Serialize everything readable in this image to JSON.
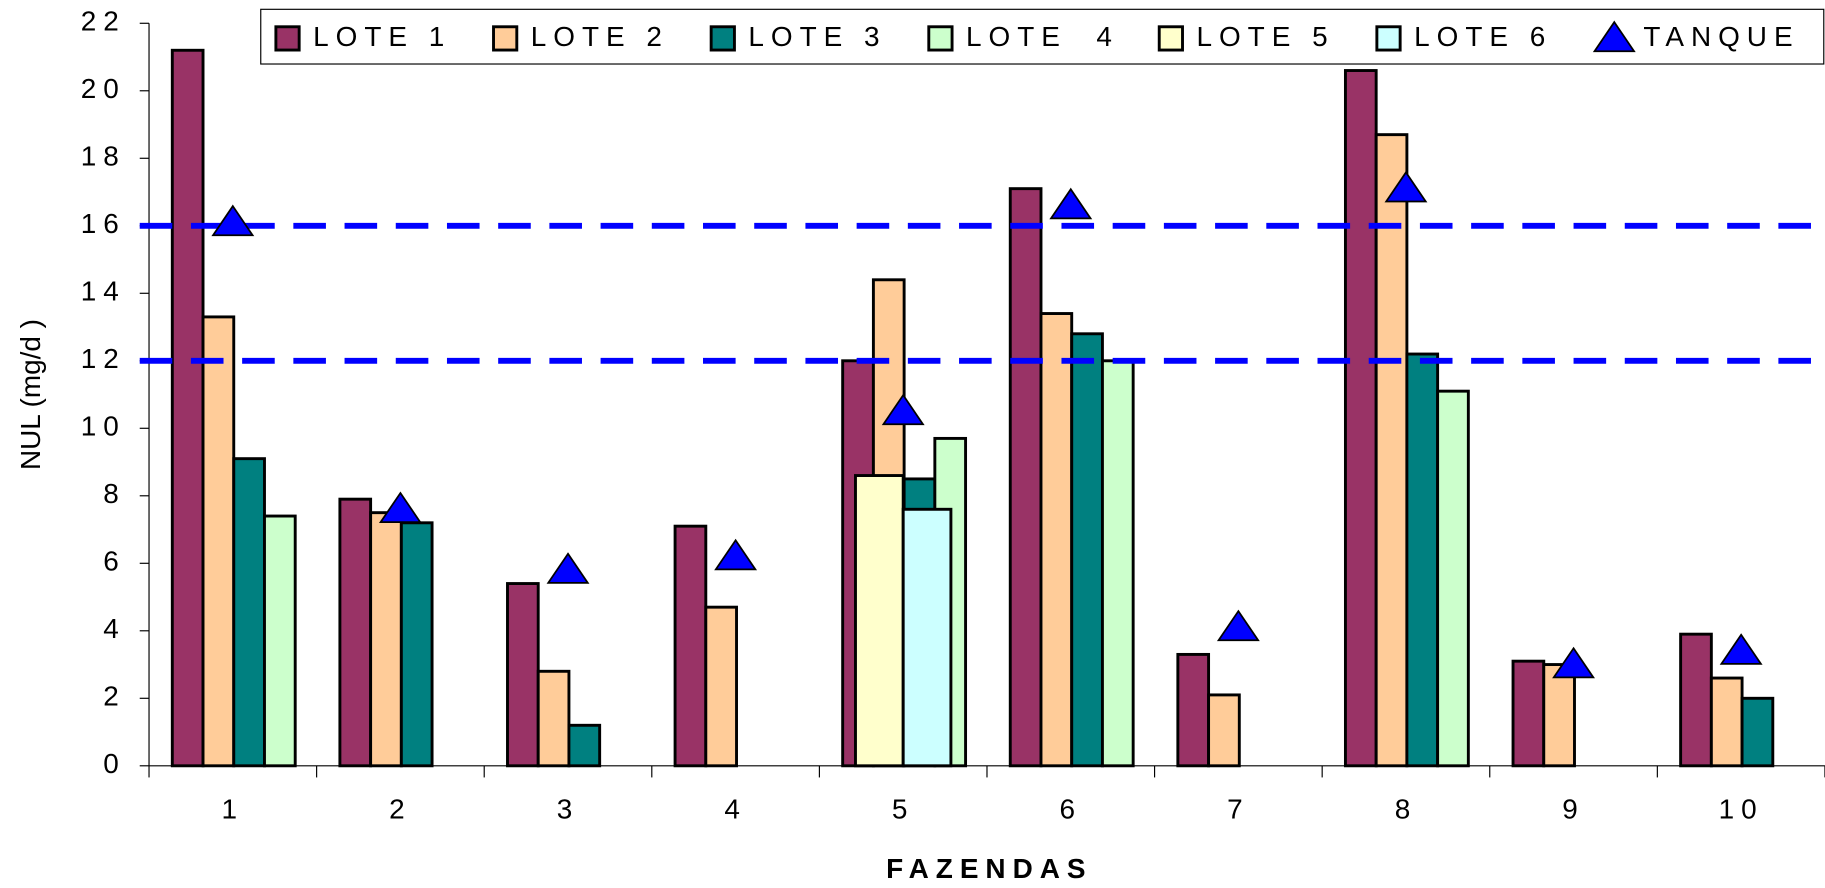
{
  "chart_data": {
    "type": "bar",
    "x_label": "FAZENDAS",
    "y_label": "NUL (mg/d )",
    "categories": [
      "1",
      "2",
      "3",
      "4",
      "5",
      "6",
      "7",
      "8",
      "9",
      "10"
    ],
    "series": [
      {
        "name": "LOTE 1",
        "color": "#993366",
        "values": [
          21.2,
          7.9,
          5.4,
          7.1,
          12.0,
          17.1,
          3.3,
          20.6,
          3.1,
          3.9
        ]
      },
      {
        "name": "LOTE 2",
        "color": "#FFCC99",
        "values": [
          13.3,
          7.5,
          2.8,
          4.7,
          14.4,
          13.4,
          2.1,
          18.7,
          3.0,
          2.6
        ]
      },
      {
        "name": "LOTE 3",
        "color": "#008080",
        "values": [
          9.1,
          7.2,
          1.2,
          null,
          8.5,
          12.8,
          null,
          12.2,
          null,
          2.0
        ]
      },
      {
        "name": "LOTE  4",
        "color": "#CCFFCC",
        "values": [
          7.4,
          null,
          null,
          null,
          9.7,
          12.0,
          null,
          11.1,
          null,
          null
        ]
      },
      {
        "name": "LOTE 5",
        "color": "#FFFFCC",
        "values": [
          null,
          null,
          null,
          null,
          8.6,
          null,
          null,
          null,
          null,
          null
        ]
      },
      {
        "name": "LOTE 6",
        "color": "#CCFFFF",
        "values": [
          null,
          null,
          null,
          null,
          7.6,
          null,
          null,
          null,
          null,
          null
        ]
      },
      {
        "name": "TANQUE",
        "color": "#0000FF",
        "values": [
          16.1,
          7.6,
          5.8,
          6.2,
          10.5,
          16.6,
          4.1,
          17.1,
          3.0,
          3.4
        ]
      }
    ],
    "reference_lines": [
      12,
      16
    ],
    "reference_color": "#0000FF",
    "ylim": [
      0,
      22
    ],
    "yticks": [
      0,
      2,
      4,
      6,
      8,
      10,
      12,
      14,
      16,
      18,
      20,
      22
    ]
  }
}
